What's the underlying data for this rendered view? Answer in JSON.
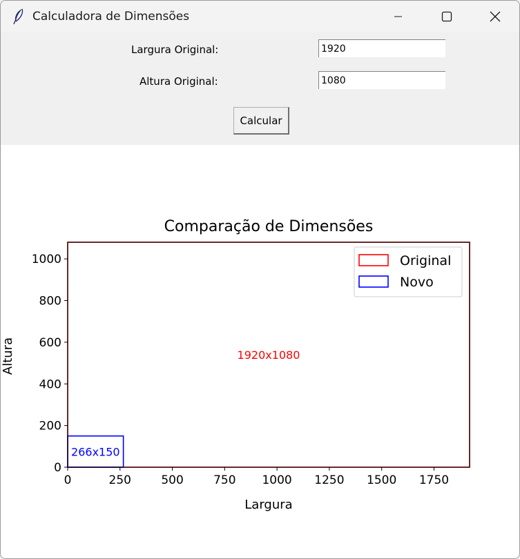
{
  "window": {
    "title": "Calculadora de Dimensões",
    "icon": "feather-icon",
    "controls": [
      "minimize-icon",
      "maximize-icon",
      "close-icon"
    ]
  },
  "form": {
    "width_label": "Largura Original:",
    "width_value": "1920",
    "height_label": "Altura Original:",
    "height_value": "1080",
    "calculate_label": "Calcular"
  },
  "chart_data": {
    "type": "rectangles",
    "title": "Comparação de Dimensões",
    "xlabel": "Largura",
    "ylabel": "Altura",
    "xlim": [
      0,
      1920
    ],
    "ylim": [
      0,
      1080
    ],
    "xticks": [
      0,
      250,
      500,
      750,
      1000,
      1250,
      1500,
      1750
    ],
    "yticks": [
      0,
      200,
      400,
      600,
      800,
      1000
    ],
    "grid": false,
    "legend_position": "top-right",
    "series": [
      {
        "name": "Original",
        "width": 1920,
        "height": 1080,
        "label": "1920x1080",
        "color": "#ff0000"
      },
      {
        "name": "Novo",
        "width": 266,
        "height": 150,
        "label": "266x150",
        "color": "#0000ff"
      }
    ]
  }
}
